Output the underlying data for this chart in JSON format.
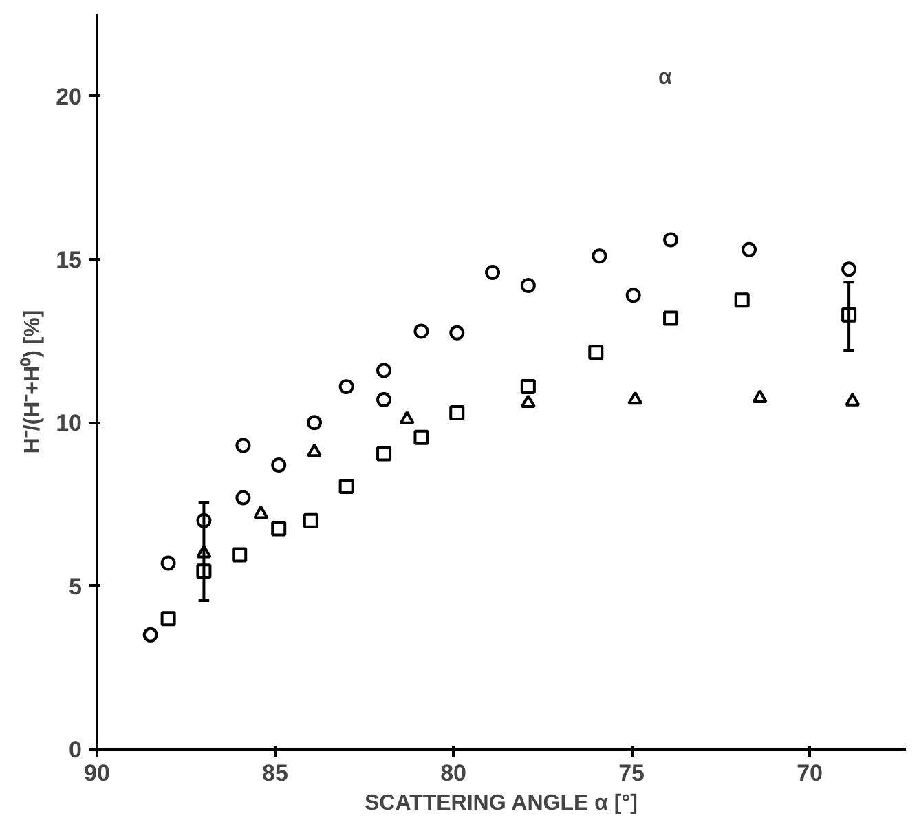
{
  "chart_data": {
    "type": "scatter",
    "xlabel": "SCATTERING ANGLE α [°]",
    "ylabel": "H⁻/(H⁻+H⁰) [%]",
    "xlim": [
      90,
      67.3
    ],
    "ylim": [
      0,
      22.5
    ],
    "xticks": [
      90,
      85,
      80,
      75,
      70
    ],
    "yticks": [
      0,
      5,
      10,
      15,
      20
    ],
    "grid": false,
    "annotations": [
      "α"
    ],
    "series": [
      {
        "color": "#000000",
        "marker": "circle",
        "x": [
          88.5,
          88.0,
          87.0,
          85.9,
          85.9,
          84.9,
          83.9,
          83.0,
          81.95,
          81.95,
          80.9,
          79.9,
          78.9,
          77.9,
          75.9,
          74.95,
          73.9,
          71.7,
          68.9
        ],
        "values": [
          3.5,
          5.7,
          7.0,
          9.3,
          7.7,
          8.7,
          10.0,
          11.1,
          11.6,
          10.7,
          12.8,
          12.75,
          14.6,
          14.2,
          15.1,
          13.9,
          15.6,
          15.3,
          14.7
        ]
      },
      {
        "color": "#000000",
        "marker": "square",
        "x": [
          88.0,
          87.0,
          86.0,
          84.9,
          84.0,
          83.0,
          81.95,
          80.9,
          79.9,
          77.9,
          76.0,
          73.9,
          71.9,
          68.9
        ],
        "values": [
          4.0,
          5.45,
          5.95,
          6.75,
          7.0,
          8.05,
          9.05,
          9.55,
          10.3,
          11.1,
          12.15,
          13.2,
          13.75,
          13.3
        ],
        "errors": [
          null,
          null,
          null,
          null,
          null,
          null,
          null,
          null,
          null,
          null,
          null,
          null,
          null,
          [
            12.2,
            14.3
          ]
        ]
      },
      {
        "color": "#000000",
        "marker": "triangle",
        "x": [
          87.0,
          85.4,
          83.9,
          81.3,
          77.9,
          74.9,
          71.4,
          68.8
        ],
        "values": [
          6.0,
          7.2,
          9.1,
          10.1,
          10.6,
          10.7,
          10.75,
          10.65
        ],
        "errors": [
          [
            4.55,
            7.55
          ],
          null,
          null,
          null,
          null,
          null,
          null,
          null
        ]
      }
    ]
  }
}
